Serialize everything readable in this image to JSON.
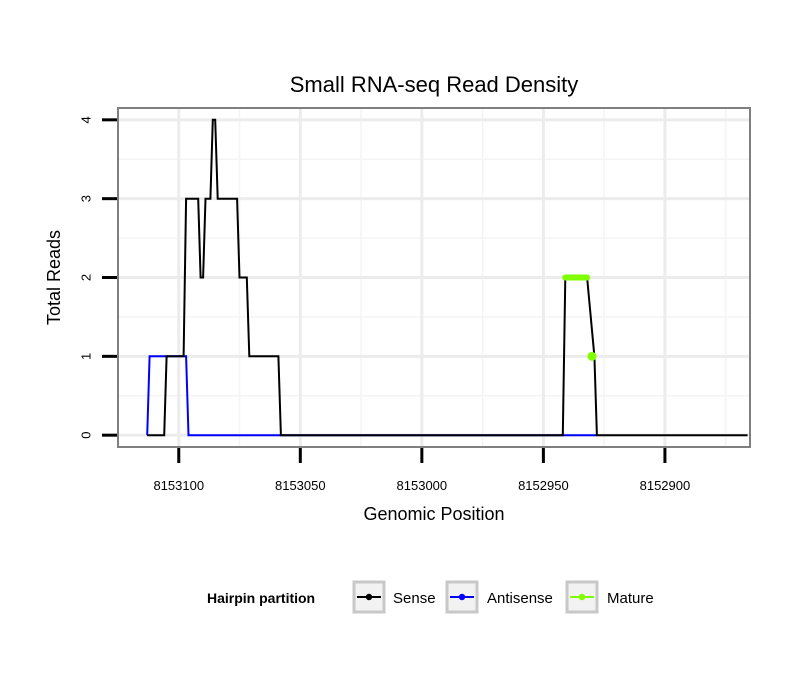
{
  "chart_data": {
    "type": "line",
    "title": "Small RNA-seq Read Density",
    "xlabel": "Genomic Position",
    "ylabel": "Total Reads",
    "x_reversed": true,
    "xlim": [
      8153125,
      8152865
    ],
    "ylim": [
      -0.15,
      4.15
    ],
    "grid": true,
    "x_ticks": [
      8153100,
      8153050,
      8153000,
      8152950,
      8152900
    ],
    "x_tick_labels": [
      "8153100",
      "8153050",
      "8153000",
      "8152950",
      "8152900"
    ],
    "y_ticks": [
      0,
      1,
      2,
      3,
      4
    ],
    "y_tick_labels": [
      "0",
      "1",
      "2",
      "3",
      "4"
    ],
    "legend": {
      "title": "Hairpin partition",
      "placement": "bottom",
      "entries": [
        {
          "label": "Sense",
          "color": "#000000"
        },
        {
          "label": "Antisense",
          "color": "#0000ff"
        },
        {
          "label": "Mature",
          "color": "#7fff00"
        }
      ]
    },
    "series": [
      {
        "name": "Sense",
        "color": "#000000",
        "x": [
          8153113,
          8153106,
          8153105,
          8153104,
          8153098,
          8153097,
          8153093,
          8153092,
          8153091,
          8153090,
          8153089,
          8153087,
          8153086,
          8153085,
          8153084,
          8153083,
          8153082,
          8153076,
          8153075,
          8153073,
          8153072,
          8153071,
          8153067,
          8153066,
          8153059,
          8153058,
          8153050,
          8153049,
          8152942,
          8152941,
          8152933,
          8152932,
          8152929,
          8152928,
          8152866
        ],
        "y": [
          0,
          0,
          1,
          1,
          1,
          3,
          3,
          3,
          2,
          2,
          3,
          3,
          4,
          4,
          3,
          3,
          3,
          3,
          2,
          2,
          2,
          1,
          1,
          1,
          1,
          0,
          0,
          0,
          0,
          2,
          2,
          2,
          1,
          0,
          0
        ]
      },
      {
        "name": "Antisense",
        "color": "#0000ff",
        "x": [
          8153113,
          8153112,
          8153097,
          8153096,
          8152928
        ],
        "y": [
          0,
          1,
          1,
          0,
          0
        ]
      },
      {
        "name": "Mature",
        "color": "#7fff00",
        "x": [
          8152941,
          8152932,
          8152930
        ],
        "y": [
          2,
          2,
          1
        ]
      }
    ]
  }
}
